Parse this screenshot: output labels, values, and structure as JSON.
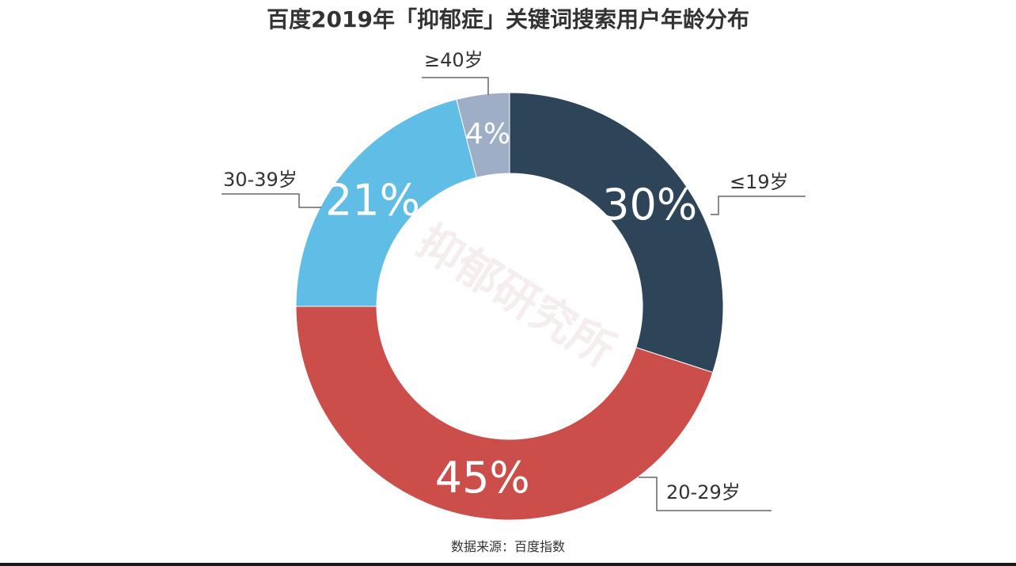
{
  "chart_data": {
    "type": "pie",
    "style": "donut",
    "title": "百度2019年「抑郁症」关键词搜索用户年龄分布",
    "categories": [
      "≤19岁",
      "20-29岁",
      "30-39岁",
      "≥40岁"
    ],
    "values": [
      30,
      45,
      21,
      4
    ],
    "value_labels": [
      "30%",
      "45%",
      "21%",
      "4%"
    ],
    "colors": [
      "#2e4459",
      "#cc4e4b",
      "#5fbde6",
      "#9eaec6"
    ],
    "source": "数据来源：百度指数",
    "watermark": "抑郁研究所"
  }
}
